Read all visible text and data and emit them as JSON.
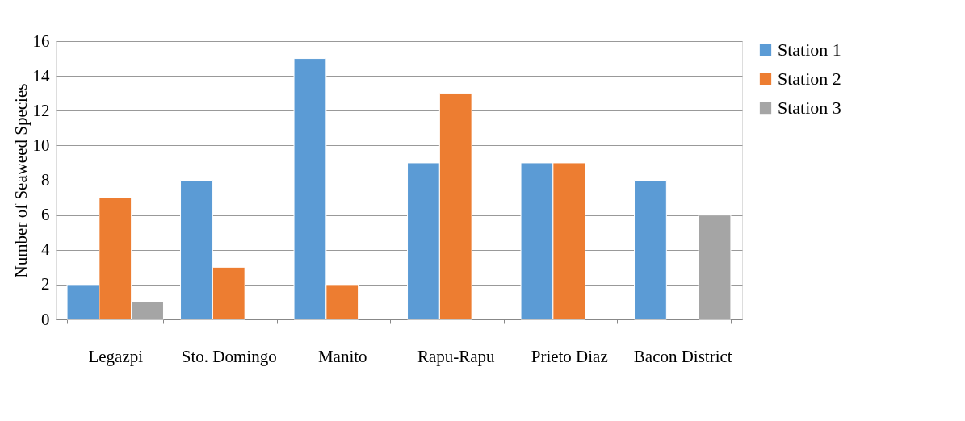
{
  "chart_data": {
    "type": "bar",
    "ylabel": "Number of Seaweed Species",
    "categories": [
      "Legazpi",
      "Sto. Domingo",
      "Manito",
      "Rapu-Rapu",
      "Prieto Diaz",
      "Bacon District"
    ],
    "series": [
      {
        "name": "Station 1",
        "color": "#5b9bd5",
        "values": [
          2,
          8,
          15,
          9,
          9,
          8
        ]
      },
      {
        "name": "Station 2",
        "color": "#ed7d31",
        "values": [
          7,
          3,
          2,
          13,
          9,
          null
        ]
      },
      {
        "name": "Station 3",
        "color": "#a5a5a5",
        "values": [
          1,
          null,
          null,
          null,
          null,
          6
        ]
      }
    ],
    "ylim": [
      0,
      16
    ],
    "yticks": [
      0,
      2,
      4,
      6,
      8,
      10,
      12,
      14,
      16
    ],
    "grid": "y",
    "legend": "right"
  }
}
